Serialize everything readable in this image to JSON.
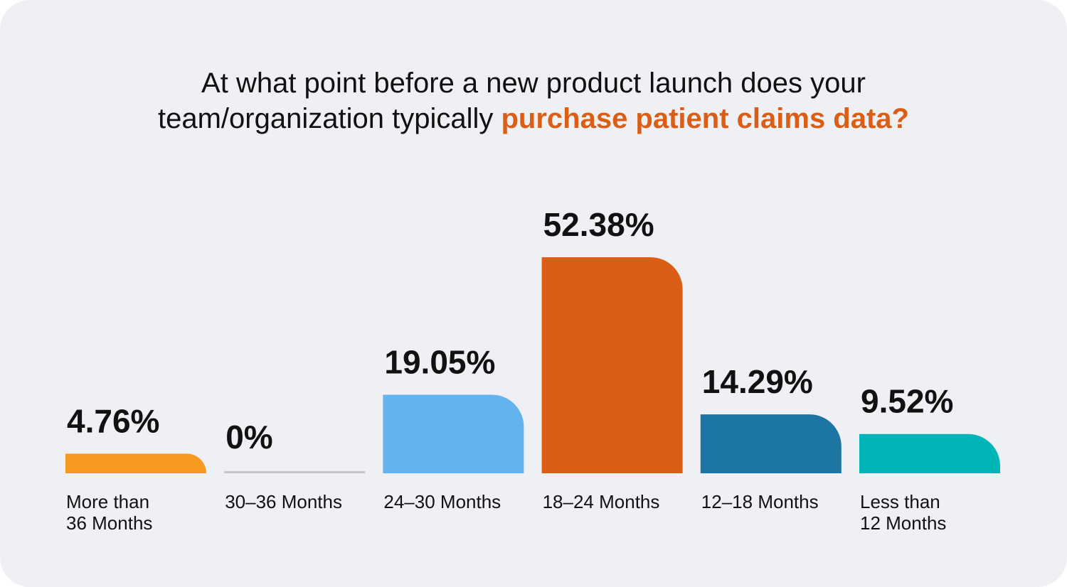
{
  "chart_data": {
    "type": "bar",
    "title": {
      "line1": "At what point before a new product launch does your",
      "line2_prefix": "team/organization typically ",
      "line2_highlight": "purchase patient claims data?"
    },
    "categories": [
      [
        "More than",
        "36 Months"
      ],
      [
        "30–36 Months"
      ],
      [
        "24–30 Months"
      ],
      [
        "18–24 Months"
      ],
      [
        "12–18 Months"
      ],
      [
        "Less than",
        "12 Months"
      ]
    ],
    "values": [
      4.76,
      0,
      19.05,
      52.38,
      14.29,
      9.52
    ],
    "value_labels": [
      "4.76%",
      "0%",
      "19.05%",
      "52.38%",
      "14.29%",
      "9.52%"
    ],
    "colors": [
      "#f7991f",
      "#c4c5ca",
      "#63b3ed",
      "#db5e17",
      "#1c75a3",
      "#00b5b8"
    ],
    "highlight_color": "#db5e17",
    "xlabel": "",
    "ylabel": "",
    "ylim": [
      0,
      52.38
    ],
    "grid": false,
    "legend": "none"
  }
}
